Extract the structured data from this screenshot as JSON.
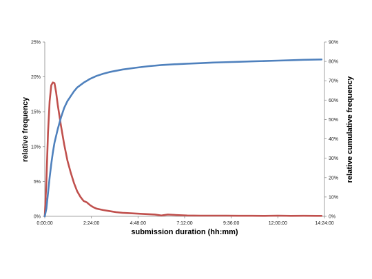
{
  "chart_data": {
    "type": "line",
    "xlabel": "submission duration (hh:mm)",
    "ylabel_left": "relative frequency",
    "ylabel_right": "relative cumulative frequency",
    "x_unit": "minutes",
    "xlim": [
      0,
      864
    ],
    "x_ticks": [
      {
        "value": 0,
        "label": "0:00:00"
      },
      {
        "value": 144,
        "label": "2:24:00"
      },
      {
        "value": 288,
        "label": "4:48:00"
      },
      {
        "value": 432,
        "label": "7:12:00"
      },
      {
        "value": 576,
        "label": "9:36:00"
      },
      {
        "value": 720,
        "label": "12:00:00"
      },
      {
        "value": 864,
        "label": "14:24:00"
      }
    ],
    "ylim_left": [
      0,
      25
    ],
    "y_ticks_left": [
      {
        "value": 0,
        "label": "0%"
      },
      {
        "value": 5,
        "label": "5%"
      },
      {
        "value": 10,
        "label": "10%"
      },
      {
        "value": 15,
        "label": "15%"
      },
      {
        "value": 20,
        "label": "20%"
      },
      {
        "value": 25,
        "label": "25%"
      }
    ],
    "ylim_right": [
      0,
      90
    ],
    "y_ticks_right": [
      {
        "value": 0,
        "label": "0%"
      },
      {
        "value": 10,
        "label": "10%"
      },
      {
        "value": 20,
        "label": "20%"
      },
      {
        "value": 30,
        "label": "30%"
      },
      {
        "value": 40,
        "label": "40%"
      },
      {
        "value": 50,
        "label": "50%"
      },
      {
        "value": 60,
        "label": "60%"
      },
      {
        "value": 70,
        "label": "70%"
      },
      {
        "value": 80,
        "label": "80%"
      },
      {
        "value": 90,
        "label": "90%"
      }
    ],
    "grid": false,
    "series": [
      {
        "axis": "left",
        "color": "#c0504d",
        "points": [
          [
            0,
            0
          ],
          [
            5,
            5
          ],
          [
            10,
            12
          ],
          [
            15,
            16.5
          ],
          [
            20,
            18.8
          ],
          [
            25,
            19.2
          ],
          [
            30,
            19.1
          ],
          [
            35,
            17.8
          ],
          [
            40,
            16
          ],
          [
            50,
            13
          ],
          [
            60,
            10.3
          ],
          [
            70,
            8
          ],
          [
            80,
            6.3
          ],
          [
            90,
            4.8
          ],
          [
            100,
            3.6
          ],
          [
            110,
            2.8
          ],
          [
            120,
            2.2
          ],
          [
            130,
            2.0
          ],
          [
            140,
            1.6
          ],
          [
            150,
            1.3
          ],
          [
            160,
            1.1
          ],
          [
            180,
            0.9
          ],
          [
            200,
            0.75
          ],
          [
            220,
            0.6
          ],
          [
            240,
            0.5
          ],
          [
            260,
            0.45
          ],
          [
            280,
            0.4
          ],
          [
            300,
            0.35
          ],
          [
            320,
            0.3
          ],
          [
            340,
            0.25
          ],
          [
            360,
            0.12
          ],
          [
            380,
            0.25
          ],
          [
            400,
            0.2
          ],
          [
            420,
            0.15
          ],
          [
            440,
            0.12
          ],
          [
            480,
            0.1
          ],
          [
            520,
            0.1
          ],
          [
            560,
            0.1
          ],
          [
            600,
            0.08
          ],
          [
            640,
            0.08
          ],
          [
            680,
            0.07
          ],
          [
            720,
            0.1
          ],
          [
            760,
            0.07
          ],
          [
            800,
            0.08
          ],
          [
            840,
            0.07
          ],
          [
            855,
            0.07
          ]
        ]
      },
      {
        "axis": "right",
        "color": "#4f81bd",
        "points": [
          [
            0,
            0
          ],
          [
            5,
            4
          ],
          [
            10,
            12
          ],
          [
            15,
            20
          ],
          [
            20,
            27
          ],
          [
            25,
            33
          ],
          [
            30,
            38
          ],
          [
            40,
            45
          ],
          [
            50,
            51
          ],
          [
            60,
            56
          ],
          [
            70,
            59.5
          ],
          [
            80,
            62
          ],
          [
            90,
            64.5
          ],
          [
            100,
            66.5
          ],
          [
            120,
            69
          ],
          [
            140,
            71
          ],
          [
            160,
            72.5
          ],
          [
            180,
            73.6
          ],
          [
            200,
            74.5
          ],
          [
            240,
            75.8
          ],
          [
            280,
            76.7
          ],
          [
            320,
            77.5
          ],
          [
            360,
            78.1
          ],
          [
            400,
            78.5
          ],
          [
            440,
            78.8
          ],
          [
            480,
            79.1
          ],
          [
            520,
            79.4
          ],
          [
            560,
            79.6
          ],
          [
            600,
            79.8
          ],
          [
            640,
            80.0
          ],
          [
            680,
            80.2
          ],
          [
            720,
            80.4
          ],
          [
            760,
            80.6
          ],
          [
            800,
            80.8
          ],
          [
            855,
            81.0
          ]
        ]
      }
    ]
  }
}
